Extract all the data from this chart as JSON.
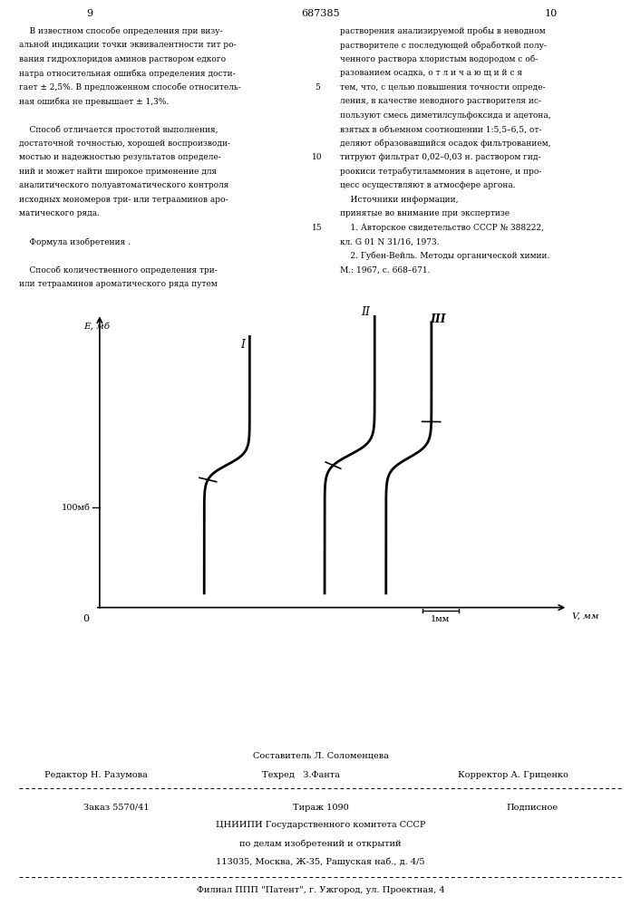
{
  "page_width": 7.07,
  "page_height": 10.0,
  "bg_color": "#ffffff",
  "text_color": "#000000",
  "page_number_left": "9",
  "page_number_center": "687385",
  "page_number_right": "10",
  "col1_text": [
    "    В известном способе определения при визу-",
    "альной индикации точки эквивалентности тит ро-",
    "вания гидрохлоридов аминов раствором едкого",
    "натра относительная ошибка определения дости-",
    "гает ± 2,5%. В предложенном способе относитель-",
    "ная ошибка не превышает ± 1,3%.",
    "",
    "    Способ отличается простотой выполнения,",
    "достаточной точностью, хорошей воспроизводи-",
    "мостью и надежностью результатов определе-",
    "ний и может найти широкое применение для",
    "аналитического полуавтоматического контроля",
    "исходных мономеров три- или тетрааминов аро-",
    "матического ряда.",
    "",
    "    Формула изобретения .",
    "",
    "    Способ количественного определения три-",
    "или тетрааминов ароматического ряда путем"
  ],
  "col2_text": [
    "растворения анализируемой пробы в неводном",
    "растворителе с последующей обработкой полу-",
    "ченного раствора хлористым водородом с об-",
    "разованием осадка, о т л и ч а ю щ и й с я",
    "тем, что, с целью повышения точности опреде-",
    "ления, в качестве неводного растворителя ис-",
    "пользуют смесь диметилсульфоксида и ацетона,",
    "взятых в объемном соотношении 1:5,5–6,5, от-",
    "деляют образовавшийся осадок фильтрованием,",
    "титруют фильтрат 0,02–0,03 н. раствором гид-",
    "роокиси тетрабутиламмония в ацетоне, и про-",
    "цесс осуществляют в атмосфере аргона.",
    "    Источники информации,",
    "принятые во внимание при экспертизе",
    "    1. Авторское свидетельство СССР № 388222,",
    "кл. G 01 N 31/16, 1973.",
    "    2. Губен-Вейль. Методы органической химии.",
    "М.: 1967, с. 668–671."
  ],
  "line_numbers": [
    "5",
    "10",
    "15"
  ],
  "ylabel": "E, мб",
  "xlabel": "V, мм",
  "scale_label": "1мм",
  "y_tick_label": "100мб",
  "curve_labels": [
    "I",
    "II",
    "III"
  ],
  "footer_line1": "Составитель Л. Соломенцева",
  "footer_line2_left": "Редактор Н. Разумова",
  "footer_line2_mid": "Техред   З.Фанта",
  "footer_line2_right": "Корректор А. Гриценко",
  "footer_line3_left": "Заказ 5570/41",
  "footer_line3_mid": "Тираж 1090",
  "footer_line3_right": "Подписное",
  "footer_line4": "ЦНИИПИ Государственного комитета СССР",
  "footer_line5": "по делам изобретений и открытий",
  "footer_line6": "113035, Москва, Ж-35, Рашуская наб., д. 4/5",
  "footer_line7": "Филиал ППП \"Патент\", г. Ужгород, ул. Проектная, 4"
}
